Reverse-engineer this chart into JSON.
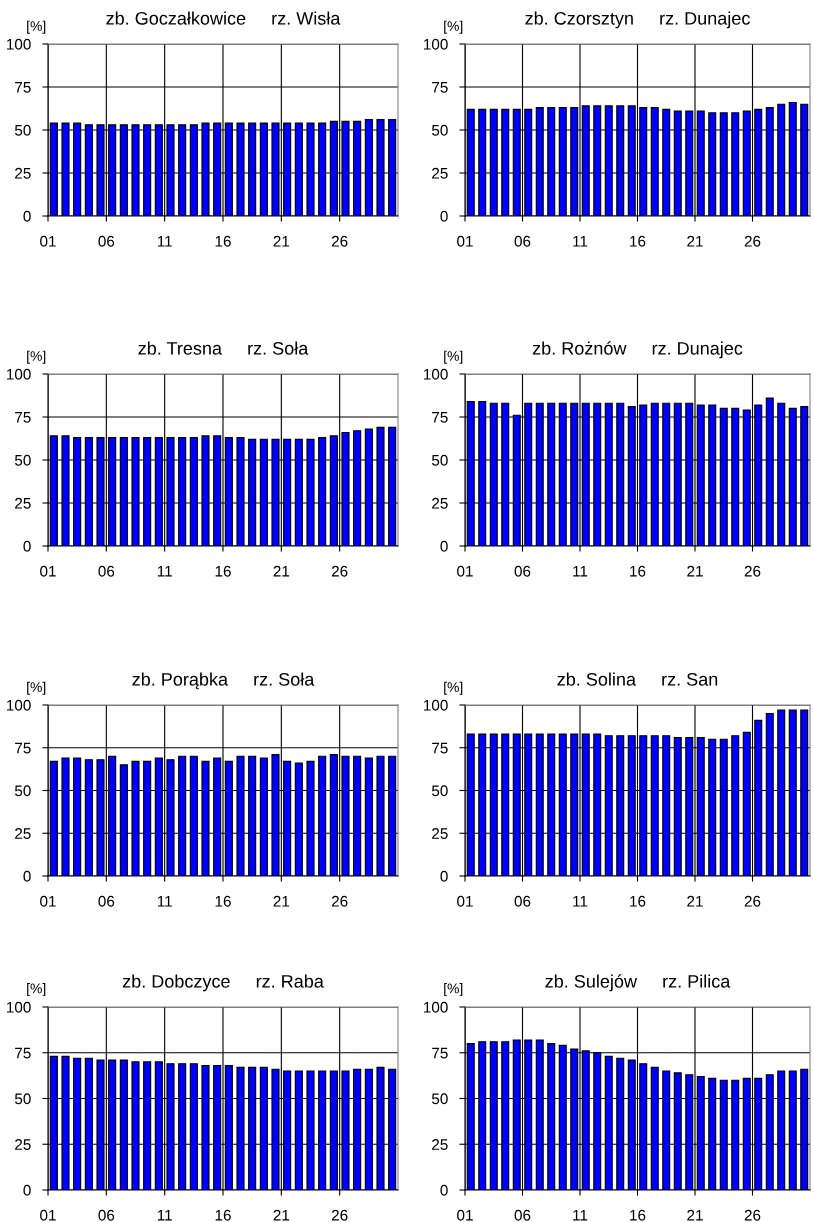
{
  "chart_data": [
    {
      "type": "bar",
      "title": "zb. Goczałkowice     rz. Wisła",
      "ylabel": "[%]",
      "categories": [
        "01",
        null,
        null,
        null,
        null,
        "06",
        null,
        null,
        null,
        null,
        "11",
        null,
        null,
        null,
        null,
        "16",
        null,
        null,
        null,
        null,
        "21",
        null,
        null,
        null,
        null,
        "26",
        null,
        null,
        null,
        null
      ],
      "color": "#0000ff",
      "ylim": [
        0,
        100
      ],
      "yticks": [
        0,
        25,
        50,
        75,
        100
      ],
      "grid": true,
      "values": [
        54,
        54,
        54,
        53,
        53,
        53,
        53,
        53,
        53,
        53,
        53,
        53,
        53,
        54,
        54,
        54,
        54,
        54,
        54,
        54,
        54,
        54,
        54,
        54,
        55,
        55,
        55,
        56,
        56,
        56
      ]
    },
    {
      "type": "bar",
      "title": "zb. Czorsztyn     rz. Dunajec",
      "ylabel": "[%]",
      "categories": [
        "01",
        null,
        null,
        null,
        null,
        "06",
        null,
        null,
        null,
        null,
        "11",
        null,
        null,
        null,
        null,
        "16",
        null,
        null,
        null,
        null,
        "21",
        null,
        null,
        null,
        null,
        "26",
        null,
        null,
        null,
        null
      ],
      "color": "#0000ff",
      "ylim": [
        0,
        100
      ],
      "yticks": [
        0,
        25,
        50,
        75,
        100
      ],
      "grid": true,
      "values": [
        62,
        62,
        62,
        62,
        62,
        62,
        63,
        63,
        63,
        63,
        64,
        64,
        64,
        64,
        64,
        63,
        63,
        62,
        61,
        61,
        61,
        60,
        60,
        60,
        61,
        62,
        63,
        65,
        66,
        65
      ]
    },
    {
      "type": "bar",
      "title": "zb. Tresna     rz. Soła",
      "ylabel": "[%]",
      "categories": [
        "01",
        null,
        null,
        null,
        null,
        "06",
        null,
        null,
        null,
        null,
        "11",
        null,
        null,
        null,
        null,
        "16",
        null,
        null,
        null,
        null,
        "21",
        null,
        null,
        null,
        null,
        "26",
        null,
        null,
        null,
        null
      ],
      "color": "#0000ff",
      "ylim": [
        0,
        100
      ],
      "yticks": [
        0,
        25,
        50,
        75,
        100
      ],
      "grid": true,
      "values": [
        64,
        64,
        63,
        63,
        63,
        63,
        63,
        63,
        63,
        63,
        63,
        63,
        63,
        64,
        64,
        63,
        63,
        62,
        62,
        62,
        62,
        62,
        62,
        63,
        64,
        66,
        67,
        68,
        69,
        69
      ]
    },
    {
      "type": "bar",
      "title": "zb. Rożnów     rz. Dunajec",
      "ylabel": "[%]",
      "categories": [
        "01",
        null,
        null,
        null,
        null,
        "06",
        null,
        null,
        null,
        null,
        "11",
        null,
        null,
        null,
        null,
        "16",
        null,
        null,
        null,
        null,
        "21",
        null,
        null,
        null,
        null,
        "26",
        null,
        null,
        null,
        null
      ],
      "color": "#0000ff",
      "ylim": [
        0,
        100
      ],
      "yticks": [
        0,
        25,
        50,
        75,
        100
      ],
      "grid": true,
      "values": [
        84,
        84,
        83,
        83,
        76,
        83,
        83,
        83,
        83,
        83,
        83,
        83,
        83,
        83,
        81,
        82,
        83,
        83,
        83,
        83,
        82,
        82,
        80,
        80,
        79,
        82,
        86,
        83,
        80,
        81
      ]
    },
    {
      "type": "bar",
      "title": "zb. Porąbka     rz. Soła",
      "ylabel": "[%]",
      "categories": [
        "01",
        null,
        null,
        null,
        null,
        "06",
        null,
        null,
        null,
        null,
        "11",
        null,
        null,
        null,
        null,
        "16",
        null,
        null,
        null,
        null,
        "21",
        null,
        null,
        null,
        null,
        "26",
        null,
        null,
        null,
        null
      ],
      "color": "#0000ff",
      "ylim": [
        0,
        100
      ],
      "yticks": [
        0,
        25,
        50,
        75,
        100
      ],
      "grid": true,
      "values": [
        67,
        69,
        69,
        68,
        68,
        70,
        65,
        67,
        67,
        69,
        68,
        70,
        70,
        67,
        69,
        67,
        70,
        70,
        69,
        71,
        67,
        66,
        67,
        70,
        71,
        70,
        70,
        69,
        70,
        70
      ]
    },
    {
      "type": "bar",
      "title": "zb. Solina     rz. San",
      "ylabel": "[%]",
      "categories": [
        "01",
        null,
        null,
        null,
        null,
        "06",
        null,
        null,
        null,
        null,
        "11",
        null,
        null,
        null,
        null,
        "16",
        null,
        null,
        null,
        null,
        "21",
        null,
        null,
        null,
        null,
        "26",
        null,
        null,
        null,
        null
      ],
      "color": "#0000ff",
      "ylim": [
        0,
        100
      ],
      "yticks": [
        0,
        25,
        50,
        75,
        100
      ],
      "grid": true,
      "values": [
        83,
        83,
        83,
        83,
        83,
        83,
        83,
        83,
        83,
        83,
        83,
        83,
        82,
        82,
        82,
        82,
        82,
        82,
        81,
        81,
        81,
        80,
        80,
        82,
        84,
        91,
        95,
        97,
        97,
        97
      ]
    },
    {
      "type": "bar",
      "title": "zb. Dobczyce     rz. Raba",
      "ylabel": "[%]",
      "categories": [
        "01",
        null,
        null,
        null,
        null,
        "06",
        null,
        null,
        null,
        null,
        "11",
        null,
        null,
        null,
        null,
        "16",
        null,
        null,
        null,
        null,
        "21",
        null,
        null,
        null,
        null,
        "26",
        null,
        null,
        null,
        null
      ],
      "color": "#0000ff",
      "ylim": [
        0,
        100
      ],
      "yticks": [
        0,
        25,
        50,
        75,
        100
      ],
      "grid": true,
      "values": [
        73,
        73,
        72,
        72,
        71,
        71,
        71,
        70,
        70,
        70,
        69,
        69,
        69,
        68,
        68,
        68,
        67,
        67,
        67,
        66,
        65,
        65,
        65,
        65,
        65,
        65,
        66,
        66,
        67,
        66
      ]
    },
    {
      "type": "bar",
      "title": "zb. Sulejów     rz. Pilica",
      "ylabel": "[%]",
      "categories": [
        "01",
        null,
        null,
        null,
        null,
        "06",
        null,
        null,
        null,
        null,
        "11",
        null,
        null,
        null,
        null,
        "16",
        null,
        null,
        null,
        null,
        "21",
        null,
        null,
        null,
        null,
        "26",
        null,
        null,
        null,
        null
      ],
      "color": "#0000ff",
      "ylim": [
        0,
        100
      ],
      "yticks": [
        0,
        25,
        50,
        75,
        100
      ],
      "grid": true,
      "values": [
        80,
        81,
        81,
        81,
        82,
        82,
        82,
        80,
        79,
        77,
        76,
        75,
        73,
        72,
        71,
        69,
        67,
        65,
        64,
        63,
        62,
        61,
        60,
        60,
        61,
        61,
        63,
        65,
        65,
        66
      ]
    }
  ]
}
